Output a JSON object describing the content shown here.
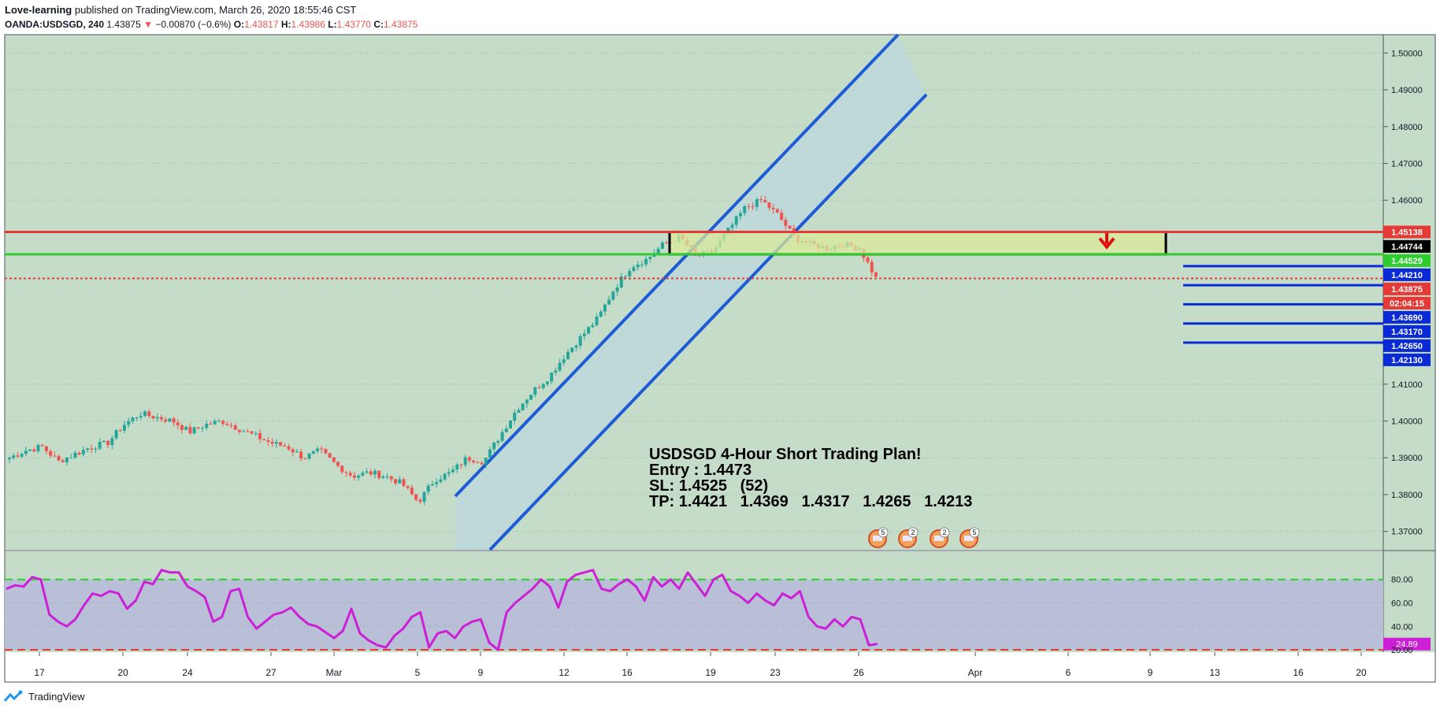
{
  "header": {
    "author": "Love-learning",
    "published_text": " published on TradingView.com, March 26, 2020 18:55:46 CST",
    "symbol": "OANDA:USDSGD, 240",
    "last": "1.43875",
    "change": "−0.00870 (−0.6%)",
    "o_label": "O:",
    "o": "1.43817",
    "h_label": "H:",
    "h": "1.43986",
    "l_label": "L:",
    "l": "1.43770",
    "c_label": "C:",
    "c": "1.43875"
  },
  "footer": {
    "brand": "TradingView"
  },
  "colors": {
    "pane_bg": "#c5dcc8",
    "rsi_band": "#b8bfd6",
    "up": "#26a69a",
    "down": "#ef5350",
    "channel": "#1e5bd6",
    "resistance": "#e53935",
    "support": "#2ecc2e",
    "rsi": "#cc1fd6",
    "tp": "#0a2ad6"
  },
  "annotation": {
    "title": "USDSGD 4-Hour Short Trading Plan!",
    "entry": "Entry : 1.4473",
    "sl": "SL: 1.4525   (52)",
    "tp": "TP: 1.4421   1.4369   1.4317   1.4265   1.4213"
  },
  "chart_data": [
    {
      "type": "candlestick",
      "title": "OANDA:USDSGD, 240",
      "x": [
        "17",
        "20",
        "24",
        "27",
        "Mar",
        "5",
        "9",
        "12",
        "16",
        "19",
        "23",
        "26",
        "Apr",
        "6",
        "9",
        "13",
        "16",
        "20"
      ],
      "ylim": [
        1.365,
        1.505
      ],
      "y_ticks": [
        "1.50000",
        "1.49000",
        "1.48000",
        "1.47000",
        "1.46000",
        "1.41000",
        "1.40000",
        "1.39000",
        "1.38000",
        "1.37000"
      ],
      "price_path": [
        [
          1.39,
          1.392
        ],
        [
          1.393,
          1.389
        ],
        [
          1.391,
          1.393
        ],
        [
          1.394,
          1.399
        ],
        [
          1.402,
          1.401
        ],
        [
          1.4,
          1.397
        ],
        [
          1.399,
          1.4
        ],
        [
          1.398,
          1.396
        ],
        [
          1.394,
          1.393
        ],
        [
          1.39,
          1.392
        ],
        [
          1.388,
          1.385
        ],
        [
          1.386,
          1.385
        ],
        [
          1.383,
          1.378
        ],
        [
          1.384,
          1.386
        ],
        [
          1.39,
          1.389
        ],
        [
          1.396,
          1.403
        ],
        [
          1.408,
          1.412
        ],
        [
          1.418,
          1.423
        ],
        [
          1.428,
          1.436
        ],
        [
          1.442,
          1.444
        ],
        [
          1.448,
          1.45
        ],
        [
          1.445,
          1.446
        ],
        [
          1.452,
          1.458
        ],
        [
          1.46,
          1.456
        ],
        [
          1.45,
          1.448
        ],
        [
          1.447,
          1.448
        ],
        [
          1.447,
          1.4388
        ]
      ],
      "levels": [
        {
          "label": "1.45138",
          "value": 1.45138,
          "role": "resistance"
        },
        {
          "label": "1.44744",
          "value": 1.44744,
          "role": "entry"
        },
        {
          "label": "1.44529",
          "value": 1.44529,
          "role": "support"
        },
        {
          "label": "1.44210",
          "value": 1.4421,
          "role": "tp"
        },
        {
          "label": "1.43875",
          "value": 1.43875,
          "role": "last"
        },
        {
          "label": "02:04:15",
          "value": 1.4362,
          "role": "countdown"
        },
        {
          "label": "1.43690",
          "value": 1.4369,
          "role": "tp"
        },
        {
          "label": "1.43170",
          "value": 1.4317,
          "role": "tp"
        },
        {
          "label": "1.42650",
          "value": 1.4265,
          "role": "tp"
        },
        {
          "label": "1.42130",
          "value": 1.4213,
          "role": "tp"
        }
      ],
      "event_badges": [
        "5",
        "2",
        "2",
        "5"
      ]
    },
    {
      "type": "line",
      "title": "",
      "ylim": [
        18,
        104
      ],
      "y_ticks": [
        "80.00",
        "60.00",
        "40.00",
        "20.00"
      ],
      "band": [
        20,
        80
      ],
      "last_value_label": "24.89",
      "series": [
        {
          "values": [
            72,
            75,
            74,
            82,
            80,
            50,
            44,
            40,
            46,
            58,
            68,
            66,
            70,
            68,
            55,
            62,
            78,
            76,
            88,
            86,
            86,
            74,
            70,
            65,
            44,
            48,
            70,
            72,
            48,
            38,
            44,
            50,
            52,
            56,
            48,
            42,
            40,
            35,
            30,
            36,
            55,
            34,
            28,
            24,
            22,
            32,
            38,
            48,
            52,
            22,
            34,
            36,
            30,
            40,
            44,
            46,
            26,
            20,
            52,
            60,
            66,
            72,
            80,
            74,
            56,
            78,
            84,
            86,
            88,
            72,
            70,
            76,
            80,
            74,
            62,
            82,
            74,
            80,
            72,
            86,
            76,
            66,
            80,
            84,
            70,
            66,
            60,
            68,
            62,
            58,
            68,
            64,
            70,
            48,
            40,
            38,
            46,
            40,
            48,
            46,
            24,
            25
          ]
        }
      ]
    }
  ]
}
